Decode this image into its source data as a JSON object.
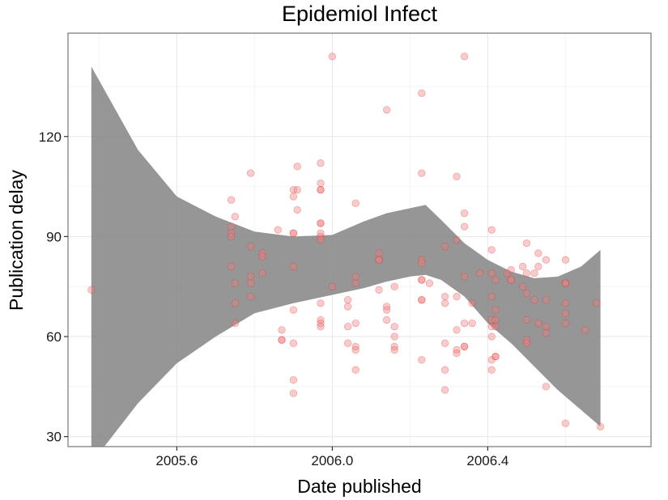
{
  "chart_data": {
    "type": "scatter",
    "title": "Epidemiol Infect",
    "xlabel": "Date published",
    "ylabel": "Publication delay",
    "xlim": [
      2005.32,
      2006.82
    ],
    "ylim": [
      27,
      151
    ],
    "x_ticks": [
      2005.6,
      2006.0,
      2006.4
    ],
    "x_tick_labels": [
      "2005.6",
      "2006.0",
      "2006.4"
    ],
    "y_ticks": [
      30,
      60,
      90,
      120
    ],
    "y_tick_labels": [
      "30",
      "60",
      "90",
      "120"
    ],
    "minor_x": [
      2005.4,
      2005.8,
      2006.2,
      2006.6
    ],
    "minor_y": [
      45,
      75,
      105,
      135
    ],
    "grid": true,
    "legend": "none",
    "point_color": "#f08080",
    "ribbon_color": "#7f7f7f",
    "points": [
      {
        "x": 2005.38,
        "y": 74
      },
      {
        "x": 2005.74,
        "y": 101
      },
      {
        "x": 2005.74,
        "y": 93
      },
      {
        "x": 2005.74,
        "y": 91
      },
      {
        "x": 2005.74,
        "y": 90
      },
      {
        "x": 2005.74,
        "y": 81
      },
      {
        "x": 2005.75,
        "y": 96
      },
      {
        "x": 2005.75,
        "y": 76
      },
      {
        "x": 2005.75,
        "y": 70
      },
      {
        "x": 2005.75,
        "y": 64
      },
      {
        "x": 2005.79,
        "y": 109
      },
      {
        "x": 2005.79,
        "y": 87
      },
      {
        "x": 2005.79,
        "y": 78
      },
      {
        "x": 2005.79,
        "y": 72
      },
      {
        "x": 2005.79,
        "y": 76
      },
      {
        "x": 2005.82,
        "y": 85
      },
      {
        "x": 2005.82,
        "y": 84
      },
      {
        "x": 2005.82,
        "y": 79
      },
      {
        "x": 2005.86,
        "y": 92
      },
      {
        "x": 2005.87,
        "y": 62
      },
      {
        "x": 2005.87,
        "y": 59
      },
      {
        "x": 2005.87,
        "y": 59
      },
      {
        "x": 2005.9,
        "y": 104
      },
      {
        "x": 2005.9,
        "y": 102
      },
      {
        "x": 2005.9,
        "y": 91
      },
      {
        "x": 2005.9,
        "y": 91
      },
      {
        "x": 2005.9,
        "y": 81
      },
      {
        "x": 2005.9,
        "y": 68
      },
      {
        "x": 2005.9,
        "y": 58
      },
      {
        "x": 2005.9,
        "y": 47
      },
      {
        "x": 2005.9,
        "y": 43
      },
      {
        "x": 2005.91,
        "y": 111
      },
      {
        "x": 2005.91,
        "y": 104
      },
      {
        "x": 2005.91,
        "y": 98
      },
      {
        "x": 2005.97,
        "y": 112
      },
      {
        "x": 2005.97,
        "y": 106
      },
      {
        "x": 2005.97,
        "y": 104
      },
      {
        "x": 2005.97,
        "y": 104
      },
      {
        "x": 2005.97,
        "y": 94
      },
      {
        "x": 2005.97,
        "y": 94
      },
      {
        "x": 2005.97,
        "y": 91
      },
      {
        "x": 2005.97,
        "y": 90
      },
      {
        "x": 2005.97,
        "y": 89
      },
      {
        "x": 2005.97,
        "y": 70
      },
      {
        "x": 2005.97,
        "y": 65
      },
      {
        "x": 2005.97,
        "y": 64
      },
      {
        "x": 2005.97,
        "y": 63
      },
      {
        "x": 2006.0,
        "y": 144
      },
      {
        "x": 2006.0,
        "y": 75
      },
      {
        "x": 2006.04,
        "y": 71
      },
      {
        "x": 2006.04,
        "y": 69
      },
      {
        "x": 2006.04,
        "y": 63
      },
      {
        "x": 2006.04,
        "y": 58
      },
      {
        "x": 2006.06,
        "y": 100
      },
      {
        "x": 2006.06,
        "y": 78
      },
      {
        "x": 2006.06,
        "y": 76
      },
      {
        "x": 2006.06,
        "y": 64
      },
      {
        "x": 2006.06,
        "y": 57
      },
      {
        "x": 2006.06,
        "y": 56
      },
      {
        "x": 2006.06,
        "y": 50
      },
      {
        "x": 2006.12,
        "y": 85
      },
      {
        "x": 2006.12,
        "y": 83
      },
      {
        "x": 2006.12,
        "y": 83
      },
      {
        "x": 2006.12,
        "y": 74
      },
      {
        "x": 2006.14,
        "y": 128
      },
      {
        "x": 2006.14,
        "y": 69
      },
      {
        "x": 2006.14,
        "y": 68
      },
      {
        "x": 2006.14,
        "y": 65
      },
      {
        "x": 2006.16,
        "y": 75
      },
      {
        "x": 2006.16,
        "y": 63
      },
      {
        "x": 2006.16,
        "y": 60
      },
      {
        "x": 2006.16,
        "y": 57
      },
      {
        "x": 2006.16,
        "y": 56
      },
      {
        "x": 2006.23,
        "y": 133
      },
      {
        "x": 2006.23,
        "y": 109
      },
      {
        "x": 2006.23,
        "y": 83
      },
      {
        "x": 2006.23,
        "y": 82
      },
      {
        "x": 2006.23,
        "y": 77
      },
      {
        "x": 2006.23,
        "y": 77
      },
      {
        "x": 2006.23,
        "y": 71
      },
      {
        "x": 2006.23,
        "y": 71
      },
      {
        "x": 2006.23,
        "y": 53
      },
      {
        "x": 2006.25,
        "y": 76
      },
      {
        "x": 2006.29,
        "y": 87
      },
      {
        "x": 2006.29,
        "y": 72
      },
      {
        "x": 2006.29,
        "y": 70
      },
      {
        "x": 2006.29,
        "y": 58
      },
      {
        "x": 2006.29,
        "y": 50
      },
      {
        "x": 2006.29,
        "y": 44
      },
      {
        "x": 2006.32,
        "y": 108
      },
      {
        "x": 2006.32,
        "y": 89
      },
      {
        "x": 2006.32,
        "y": 72
      },
      {
        "x": 2006.32,
        "y": 62
      },
      {
        "x": 2006.32,
        "y": 56
      },
      {
        "x": 2006.32,
        "y": 55
      },
      {
        "x": 2006.34,
        "y": 144
      },
      {
        "x": 2006.34,
        "y": 97
      },
      {
        "x": 2006.34,
        "y": 93
      },
      {
        "x": 2006.34,
        "y": 78
      },
      {
        "x": 2006.34,
        "y": 64
      },
      {
        "x": 2006.34,
        "y": 57
      },
      {
        "x": 2006.34,
        "y": 57
      },
      {
        "x": 2006.36,
        "y": 70
      },
      {
        "x": 2006.36,
        "y": 64
      },
      {
        "x": 2006.38,
        "y": 79
      },
      {
        "x": 2006.41,
        "y": 92
      },
      {
        "x": 2006.41,
        "y": 86
      },
      {
        "x": 2006.41,
        "y": 79
      },
      {
        "x": 2006.41,
        "y": 72
      },
      {
        "x": 2006.41,
        "y": 65
      },
      {
        "x": 2006.41,
        "y": 63
      },
      {
        "x": 2006.41,
        "y": 60
      },
      {
        "x": 2006.41,
        "y": 53
      },
      {
        "x": 2006.41,
        "y": 50
      },
      {
        "x": 2006.42,
        "y": 77
      },
      {
        "x": 2006.42,
        "y": 68
      },
      {
        "x": 2006.42,
        "y": 65
      },
      {
        "x": 2006.42,
        "y": 63
      },
      {
        "x": 2006.42,
        "y": 54
      },
      {
        "x": 2006.42,
        "y": 54
      },
      {
        "x": 2006.45,
        "y": 79
      },
      {
        "x": 2006.46,
        "y": 80
      },
      {
        "x": 2006.46,
        "y": 77
      },
      {
        "x": 2006.46,
        "y": 77
      },
      {
        "x": 2006.49,
        "y": 81
      },
      {
        "x": 2006.49,
        "y": 75
      },
      {
        "x": 2006.5,
        "y": 88
      },
      {
        "x": 2006.5,
        "y": 79
      },
      {
        "x": 2006.5,
        "y": 73
      },
      {
        "x": 2006.5,
        "y": 65
      },
      {
        "x": 2006.5,
        "y": 59
      },
      {
        "x": 2006.5,
        "y": 58
      },
      {
        "x": 2006.52,
        "y": 79
      },
      {
        "x": 2006.52,
        "y": 71
      },
      {
        "x": 2006.53,
        "y": 85
      },
      {
        "x": 2006.53,
        "y": 81
      },
      {
        "x": 2006.53,
        "y": 64
      },
      {
        "x": 2006.55,
        "y": 83
      },
      {
        "x": 2006.55,
        "y": 71
      },
      {
        "x": 2006.55,
        "y": 63
      },
      {
        "x": 2006.55,
        "y": 61
      },
      {
        "x": 2006.55,
        "y": 45
      },
      {
        "x": 2006.6,
        "y": 83
      },
      {
        "x": 2006.6,
        "y": 76
      },
      {
        "x": 2006.6,
        "y": 76
      },
      {
        "x": 2006.6,
        "y": 70
      },
      {
        "x": 2006.6,
        "y": 67
      },
      {
        "x": 2006.6,
        "y": 64
      },
      {
        "x": 2006.6,
        "y": 34
      },
      {
        "x": 2006.65,
        "y": 62
      },
      {
        "x": 2006.68,
        "y": 70
      },
      {
        "x": 2006.69,
        "y": 33
      }
    ],
    "ribbon": [
      {
        "x": 2005.38,
        "upper": 141,
        "lower": 22
      },
      {
        "x": 2005.5,
        "upper": 116,
        "lower": 40
      },
      {
        "x": 2005.6,
        "upper": 102,
        "lower": 52
      },
      {
        "x": 2005.7,
        "upper": 96,
        "lower": 60
      },
      {
        "x": 2005.8,
        "upper": 91.5,
        "lower": 67
      },
      {
        "x": 2005.9,
        "upper": 90,
        "lower": 70
      },
      {
        "x": 2006.0,
        "upper": 90.5,
        "lower": 72.5
      },
      {
        "x": 2006.08,
        "upper": 94.5,
        "lower": 74.5
      },
      {
        "x": 2006.14,
        "upper": 97,
        "lower": 76.5
      },
      {
        "x": 2006.2,
        "upper": 98.5,
        "lower": 78
      },
      {
        "x": 2006.24,
        "upper": 99.5,
        "lower": 78.5
      },
      {
        "x": 2006.28,
        "upper": 95,
        "lower": 77
      },
      {
        "x": 2006.34,
        "upper": 88,
        "lower": 72
      },
      {
        "x": 2006.4,
        "upper": 83,
        "lower": 64
      },
      {
        "x": 2006.46,
        "upper": 79.5,
        "lower": 58
      },
      {
        "x": 2006.52,
        "upper": 77.5,
        "lower": 51
      },
      {
        "x": 2006.58,
        "upper": 78,
        "lower": 44
      },
      {
        "x": 2006.64,
        "upper": 81,
        "lower": 38
      },
      {
        "x": 2006.69,
        "upper": 86,
        "lower": 33
      }
    ]
  }
}
